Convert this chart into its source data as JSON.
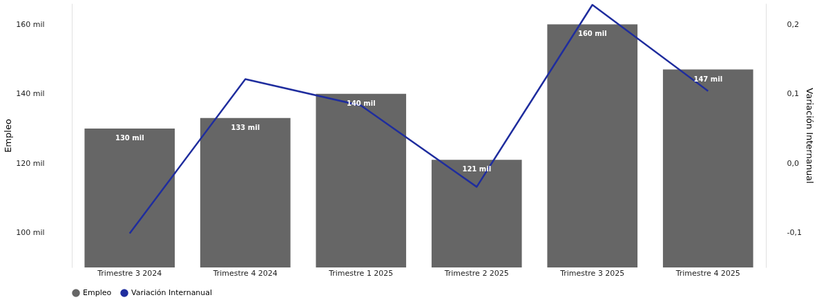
{
  "chart_data": {
    "type": "bar",
    "ylabel": "Empleo",
    "y2label": "Variación Internanual",
    "categories": [
      "Trimestre 3 2024",
      "Trimestre 4 2024",
      "Trimestre 1 2025",
      "Trimestre 2 2025",
      "Trimestre 3 2025",
      "Trimestre 4 2025"
    ],
    "series": [
      {
        "name": "Empleo",
        "color": "#666666",
        "values": [
          130,
          133,
          140,
          121,
          160,
          147
        ],
        "value_labels": [
          "130 mil",
          "133 mil",
          "140 mil",
          "121 mil",
          "160 mil",
          "147 mil"
        ]
      },
      {
        "name": "Variación Internanual",
        "type": "line",
        "axis": "y2",
        "color": "#1f2d9e",
        "values": [
          -0.101,
          0.121,
          0.083,
          -0.034,
          0.228,
          0.104
        ]
      }
    ],
    "ylim": [
      90,
      166
    ],
    "yticks": [
      {
        "value": 100,
        "label": "100 mil"
      },
      {
        "value": 120,
        "label": "120 mil"
      },
      {
        "value": 140,
        "label": "140 mil"
      },
      {
        "value": 160,
        "label": "160 mil"
      }
    ],
    "y2lim": [
      -0.15,
      0.23
    ],
    "y2ticks": [
      {
        "value": -0.1,
        "label": "-0,1"
      },
      {
        "value": 0,
        "label": "0,0"
      },
      {
        "value": 0.1,
        "label": "0,1"
      },
      {
        "value": 0.2,
        "label": "0,2"
      }
    ],
    "legend": "bottom",
    "grid": false,
    "marker": "none"
  }
}
